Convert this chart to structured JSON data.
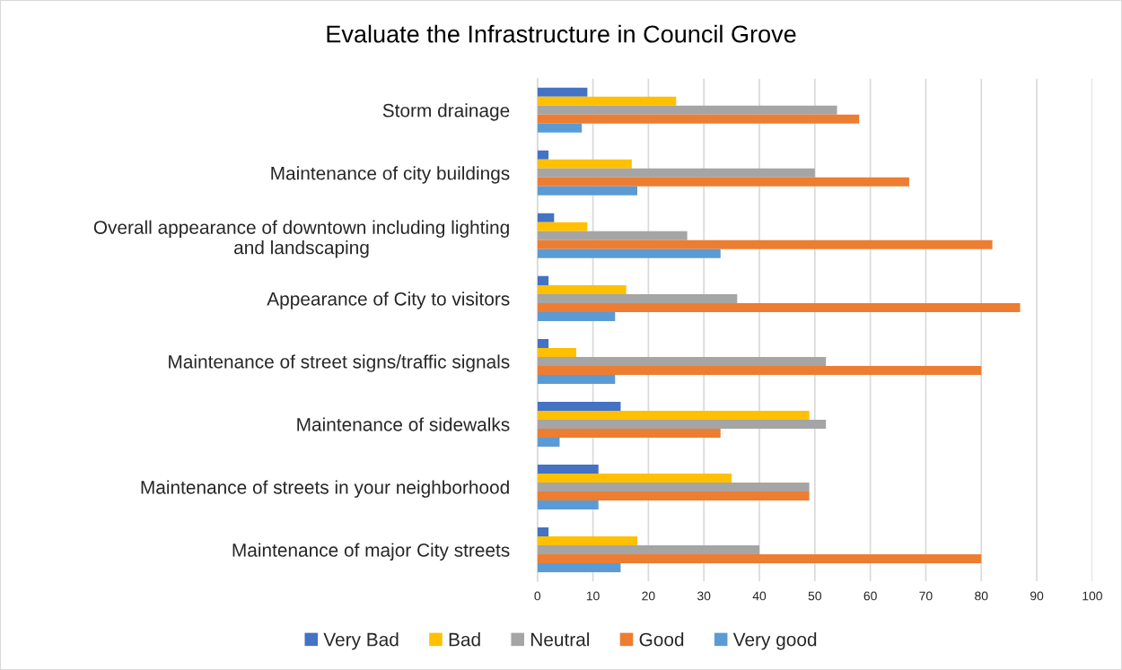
{
  "chart_data": {
    "type": "bar",
    "orientation": "horizontal",
    "title": "Evaluate the Infrastructure in Council Grove",
    "categories": [
      "Storm drainage",
      "Maintenance of city buildings",
      "Overall appearance of downtown including lighting and landscaping",
      "Appearance of City to visitors",
      "Maintenance of street signs/traffic signals",
      "Maintenance of sidewalks",
      "Maintenance of streets in your neighborhood",
      "Maintenance of major City streets"
    ],
    "series": [
      {
        "name": "Very Bad",
        "color": "#4472c4",
        "values": [
          9,
          2,
          3,
          2,
          2,
          15,
          11,
          2
        ]
      },
      {
        "name": "Bad",
        "color": "#ffc000",
        "values": [
          25,
          17,
          9,
          16,
          7,
          49,
          35,
          18
        ]
      },
      {
        "name": "Neutral",
        "color": "#a5a5a5",
        "values": [
          54,
          50,
          27,
          36,
          52,
          52,
          49,
          40
        ]
      },
      {
        "name": "Good",
        "color": "#ed7d31",
        "values": [
          58,
          67,
          82,
          87,
          80,
          33,
          49,
          80
        ]
      },
      {
        "name": "Very good",
        "color": "#5b9bd5",
        "values": [
          8,
          18,
          33,
          14,
          14,
          4,
          11,
          15
        ]
      }
    ],
    "xlim": [
      0,
      100
    ],
    "xticks": [
      0,
      10,
      20,
      30,
      40,
      50,
      60,
      70,
      80,
      90,
      100
    ],
    "grid": "x",
    "legend": "bottom"
  }
}
